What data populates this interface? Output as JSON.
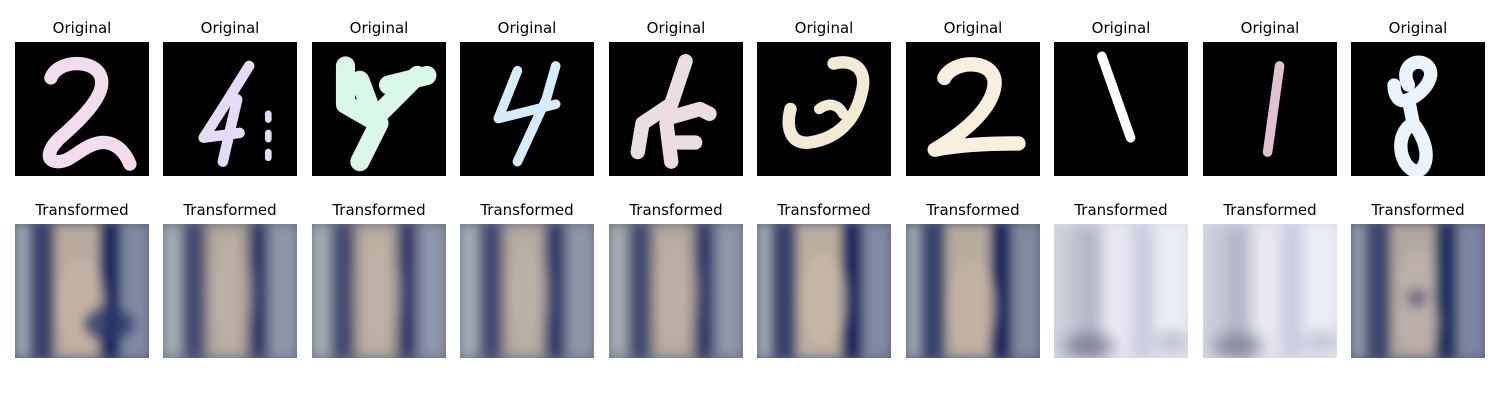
{
  "figure": {
    "original_label": "Original",
    "transformed_label": "Transformed",
    "samples": [
      {
        "digit": "2",
        "original_bg": "#000000",
        "original_stroke": "#f4dcef",
        "transformed_tint": "#c9b8a8"
      },
      {
        "digit": "4",
        "original_bg": "#000000",
        "original_stroke": "#e4dcf6",
        "transformed_tint": "#bfb2a8"
      },
      {
        "digit": "4",
        "original_bg": "#000000",
        "original_stroke": "#d9f7e6",
        "transformed_tint": "#c1b5aa"
      },
      {
        "digit": "4",
        "original_bg": "#000000",
        "original_stroke": "#d6ecfa",
        "transformed_tint": "#c0b5aa"
      },
      {
        "digit": "4",
        "original_bg": "#000000",
        "original_stroke": "#ecdde3",
        "transformed_tint": "#c2b3a8"
      },
      {
        "digit": "2",
        "original_bg": "#000000",
        "original_stroke": "#f3ead6",
        "transformed_tint": "#cbbaa8"
      },
      {
        "digit": "2",
        "original_bg": "#000000",
        "original_stroke": "#faeedf",
        "transformed_tint": "#c8b8a6"
      },
      {
        "digit": "1",
        "original_bg": "#000000",
        "original_stroke": "#ffffff",
        "transformed_tint": "#e3e3ee"
      },
      {
        "digit": "1",
        "original_bg": "#000000",
        "original_stroke": "#e3bfd2",
        "transformed_tint": "#e4e4ef"
      },
      {
        "digit": "8",
        "original_bg": "#000000",
        "original_stroke": "#e9f4ff",
        "transformed_tint": "#c5b8b0"
      }
    ],
    "colors": {
      "transformed_dark": "#2f3f6f",
      "transformed_mid": "#6f6f8a",
      "transformed_light": "#d9dbe8"
    }
  }
}
